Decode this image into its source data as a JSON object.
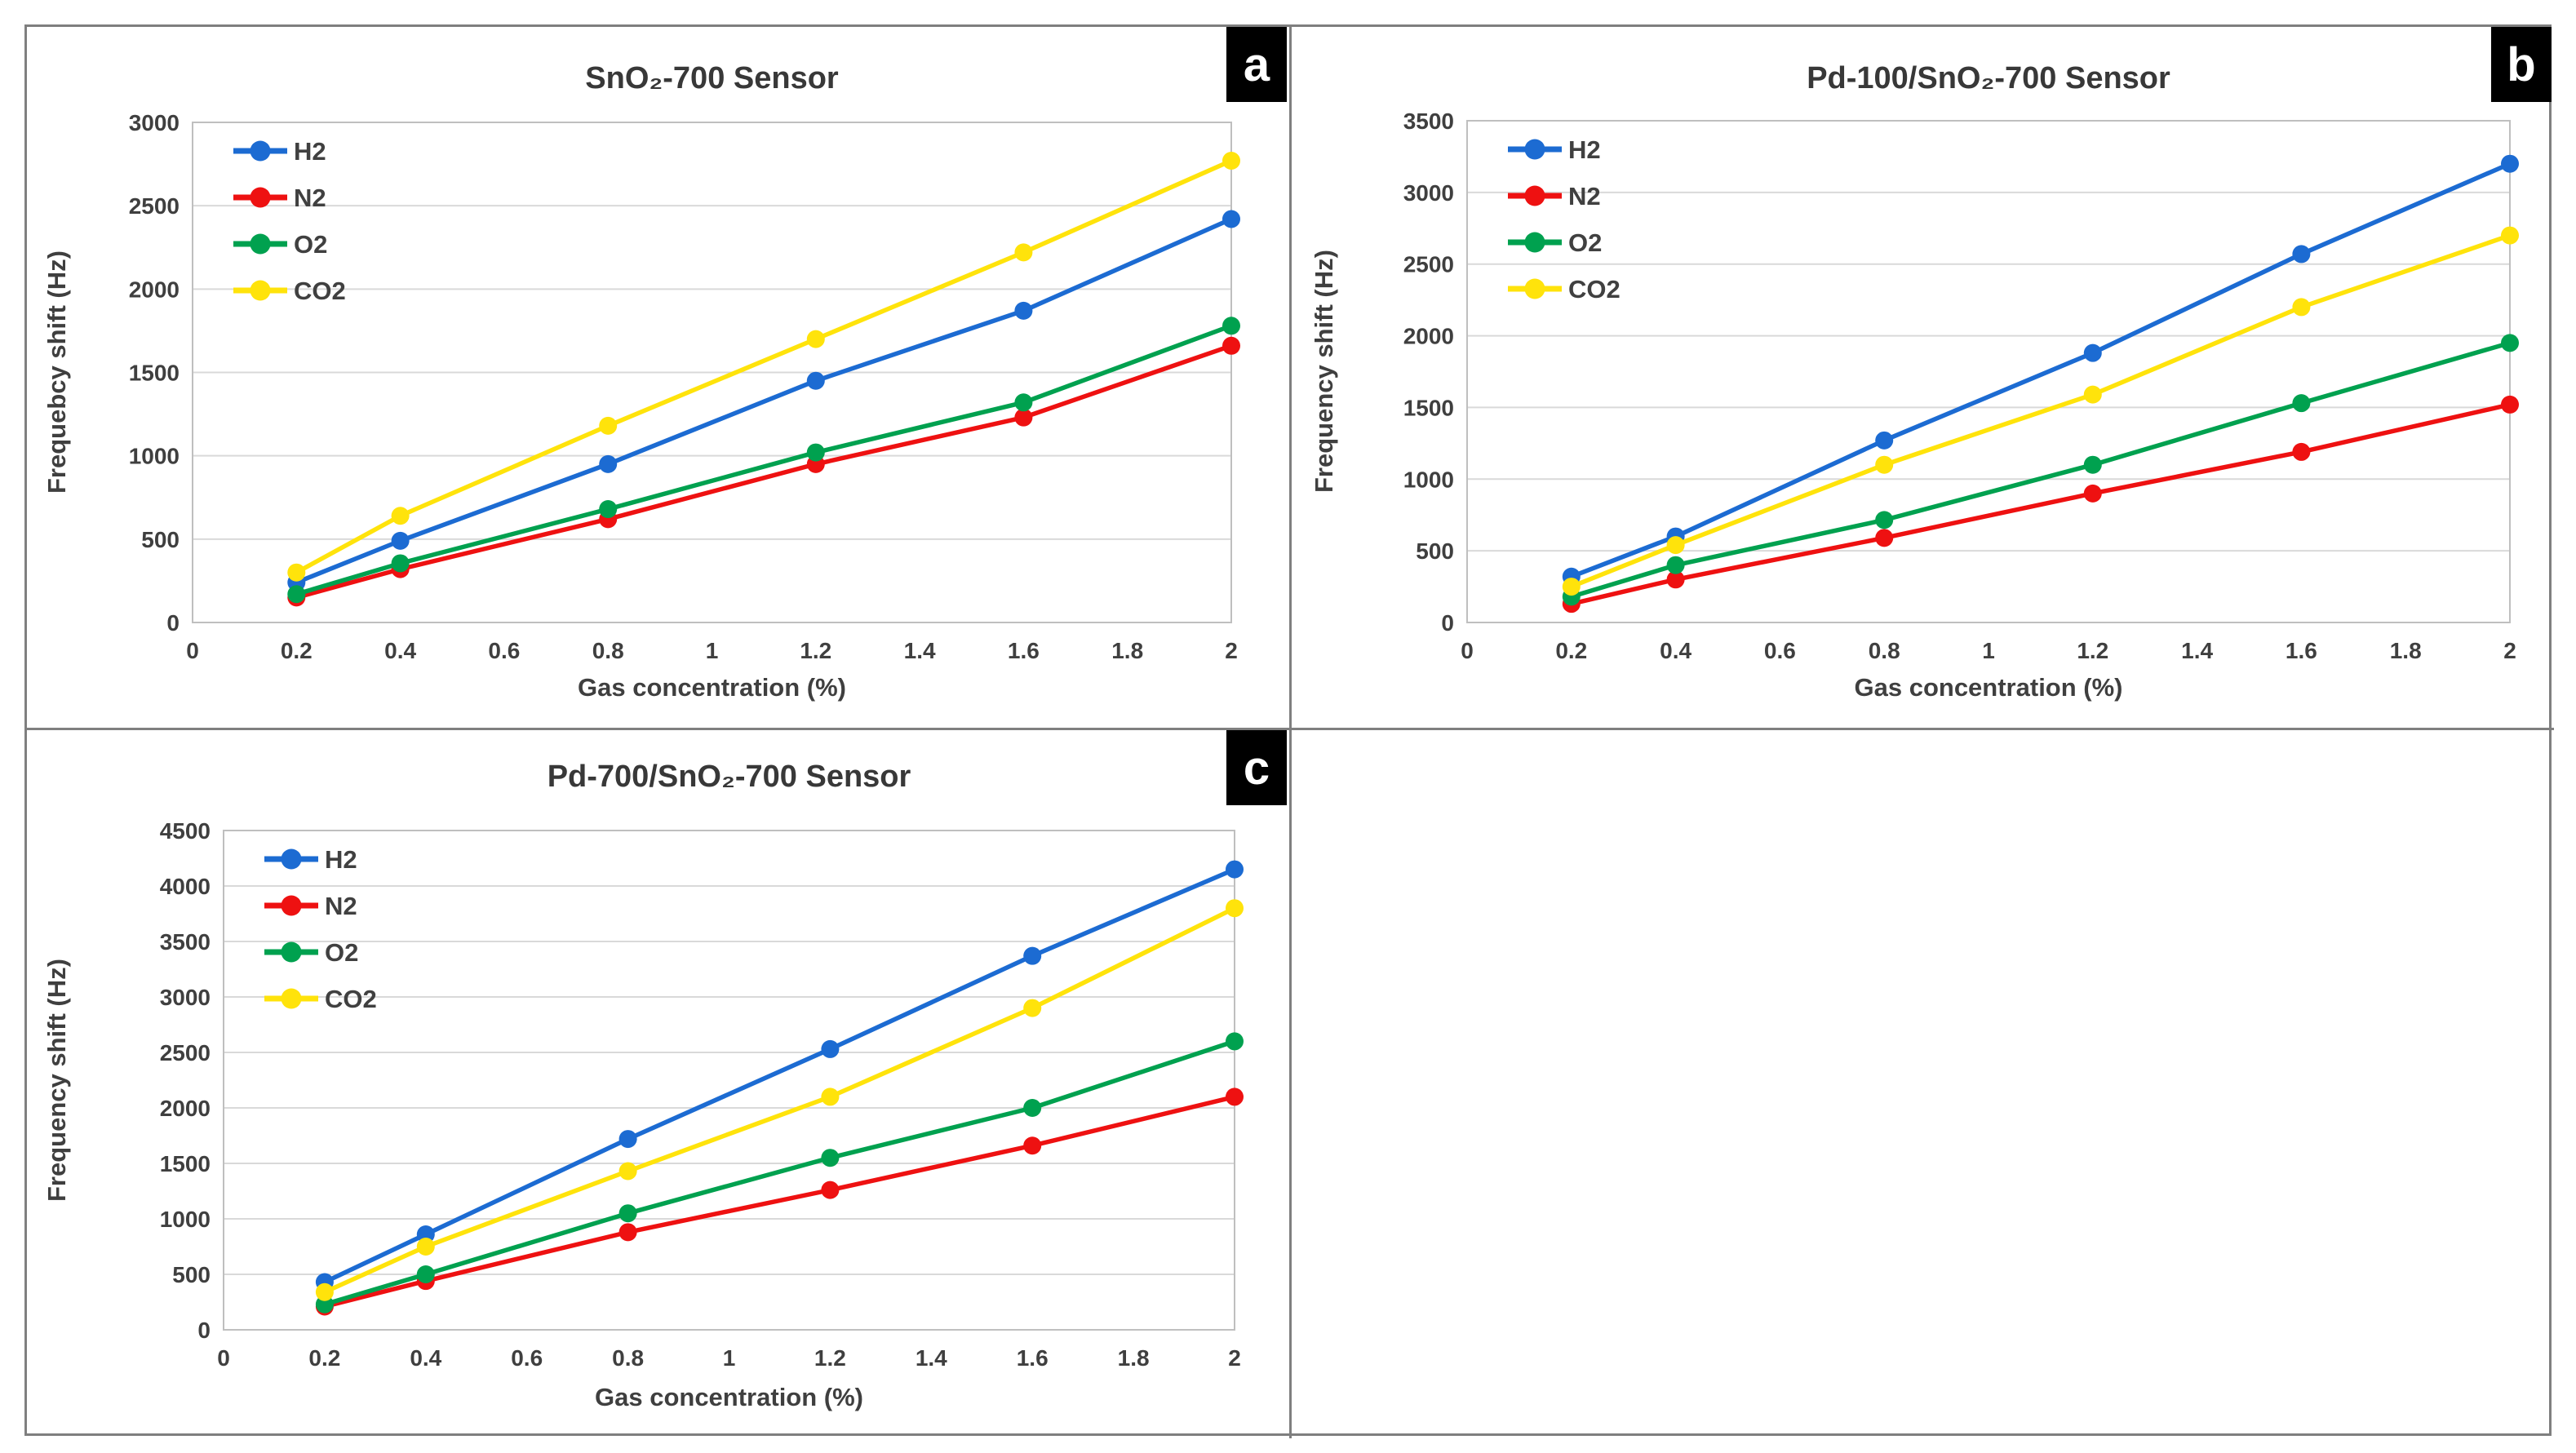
{
  "figure": {
    "panel_labels": [
      "a",
      "b",
      "c"
    ]
  },
  "chart_data": [
    {
      "type": "line",
      "panel_label": "a",
      "title": "SnO₂-700 Sensor",
      "xlabel": "Gas concentration (%)",
      "ylabel": "Frequebcy shift (Hz)",
      "x": [
        0.2,
        0.4,
        0.8,
        1.2,
        1.6,
        2
      ],
      "xlim": [
        0,
        2
      ],
      "xticks": [
        0,
        0.2,
        0.4,
        0.6,
        0.8,
        1,
        1.2,
        1.4,
        1.6,
        1.8,
        2
      ],
      "ylim": [
        0,
        3000
      ],
      "ytick_step": 500,
      "grid": "horizontal",
      "legend_position": "top-left",
      "series": [
        {
          "name": "H2",
          "color": "#1c6bd2",
          "values": [
            240,
            490,
            950,
            1450,
            1870,
            2420
          ]
        },
        {
          "name": "N2",
          "color": "#ee1111",
          "values": [
            150,
            320,
            620,
            950,
            1230,
            1660
          ]
        },
        {
          "name": "O2",
          "color": "#00a14f",
          "values": [
            170,
            355,
            680,
            1020,
            1320,
            1780
          ]
        },
        {
          "name": "CO2",
          "color": "#ffe30b",
          "values": [
            300,
            640,
            1180,
            1700,
            2220,
            2770
          ]
        }
      ]
    },
    {
      "type": "line",
      "panel_label": "b",
      "title": "Pd-100/SnO₂-700 Sensor",
      "xlabel": "Gas concentration (%)",
      "ylabel": "Frequency shift (Hz)",
      "x": [
        0.2,
        0.4,
        0.8,
        1.2,
        1.6,
        2
      ],
      "xlim": [
        0,
        2
      ],
      "xticks": [
        0,
        0.2,
        0.4,
        0.6,
        0.8,
        1,
        1.2,
        1.4,
        1.6,
        1.8,
        2
      ],
      "ylim": [
        0,
        3500
      ],
      "ytick_step": 500,
      "grid": "horizontal",
      "legend_position": "top-left",
      "series": [
        {
          "name": "H2",
          "color": "#1c6bd2",
          "values": [
            320,
            600,
            1270,
            1880,
            2570,
            3200
          ]
        },
        {
          "name": "N2",
          "color": "#ee1111",
          "values": [
            130,
            300,
            590,
            900,
            1190,
            1520
          ]
        },
        {
          "name": "O2",
          "color": "#00a14f",
          "values": [
            180,
            400,
            715,
            1100,
            1530,
            1950
          ]
        },
        {
          "name": "CO2",
          "color": "#ffe30b",
          "values": [
            250,
            540,
            1100,
            1590,
            2200,
            2700
          ]
        }
      ]
    },
    {
      "type": "line",
      "panel_label": "c",
      "title": "Pd-700/SnO₂-700 Sensor",
      "xlabel": "Gas concentration (%)",
      "ylabel": "Frequency shift (Hz)",
      "x": [
        0.2,
        0.4,
        0.8,
        1.2,
        1.6,
        2
      ],
      "xlim": [
        0,
        2
      ],
      "xticks": [
        0,
        0.2,
        0.4,
        0.6,
        0.8,
        1,
        1.2,
        1.4,
        1.6,
        1.8,
        2
      ],
      "ylim": [
        0,
        4500
      ],
      "ytick_step": 500,
      "grid": "horizontal",
      "legend_position": "top-left",
      "series": [
        {
          "name": "H2",
          "color": "#1c6bd2",
          "values": [
            430,
            860,
            1720,
            2530,
            3370,
            4150
          ]
        },
        {
          "name": "N2",
          "color": "#ee1111",
          "values": [
            210,
            440,
            880,
            1260,
            1660,
            2100
          ]
        },
        {
          "name": "O2",
          "color": "#00a14f",
          "values": [
            230,
            500,
            1050,
            1550,
            2000,
            2600
          ]
        },
        {
          "name": "CO2",
          "color": "#ffe30b",
          "values": [
            340,
            750,
            1430,
            2100,
            2900,
            3800
          ]
        }
      ]
    }
  ]
}
